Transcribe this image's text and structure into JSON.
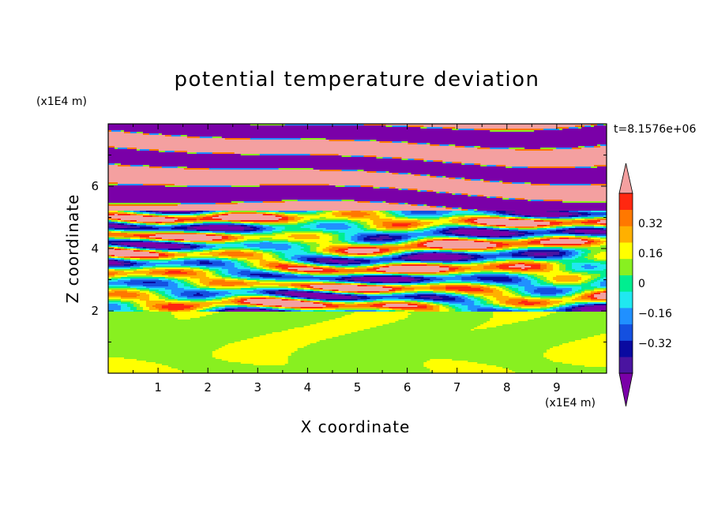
{
  "chart_data": {
    "type": "heatmap",
    "title": "potential temperature deviation",
    "xlabel": "X coordinate",
    "ylabel": "Z coordinate",
    "x_unit": "(x1E4 m)",
    "y_unit": "(x1E4 m)",
    "xlim": [
      0,
      10
    ],
    "ylim": [
      0,
      8
    ],
    "x_ticks": [
      "1",
      "2",
      "3",
      "4",
      "5",
      "6",
      "7",
      "8",
      "9"
    ],
    "y_ticks": [
      "2",
      "4",
      "6"
    ],
    "time_label": "t=8.1576e+06",
    "colorbar": {
      "levels": [
        -0.48,
        -0.4,
        -0.32,
        -0.24,
        -0.16,
        -0.08,
        0,
        0.08,
        0.16,
        0.24,
        0.32,
        0.4,
        0.48
      ],
      "tick_labels": [
        "0.32",
        "0.16",
        "0",
        "−0.16",
        "−0.32"
      ],
      "tick_values": [
        0.32,
        0.16,
        0,
        -0.16,
        -0.32
      ],
      "colors": [
        "#7a00a8",
        "#4a14a0",
        "#0a0aa0",
        "#1450e0",
        "#2090ff",
        "#20e8f0",
        "#00ee90",
        "#88f020",
        "#ffff00",
        "#ffb000",
        "#ff7800",
        "#ff2810",
        "#f4a0a0"
      ],
      "extend": "both"
    },
    "regions": [
      {
        "z_range": [
          0,
          2
        ],
        "description_values": [
          0,
          0.08
        ]
      },
      {
        "z_range": [
          2,
          5.2
        ],
        "description_values": [
          -0.48,
          0.48
        ]
      },
      {
        "z_range": [
          5.2,
          8
        ],
        "description_values": [
          -0.48,
          0.48
        ]
      }
    ]
  }
}
